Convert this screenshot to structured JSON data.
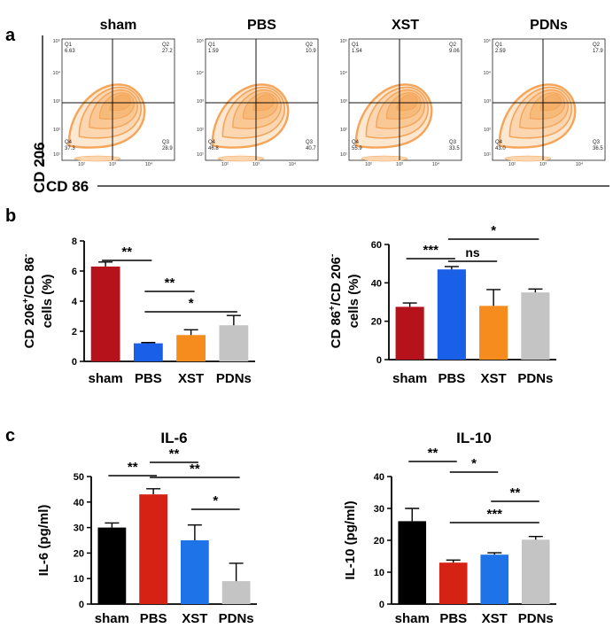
{
  "panel_letters": {
    "a": "a",
    "b": "b",
    "c": "c"
  },
  "flow": {
    "y_axis_label": "CD 206",
    "x_axis_label": "CD 86",
    "tick_labels_y": [
      "10⁵",
      "10⁴",
      "10³",
      "10²",
      "10¹"
    ],
    "tick_labels_x": [
      "10²",
      "10³",
      "10⁴"
    ],
    "contour_color": "#F5A55A",
    "plots": [
      {
        "title": "sham",
        "quadrants": {
          "Q1": "6.63",
          "Q2": "27.2",
          "Q3": "28.9",
          "Q4": "37.3"
        }
      },
      {
        "title": "PBS",
        "quadrants": {
          "Q1": "1.59",
          "Q2": "10.9",
          "Q3": "40.7",
          "Q4": "46.8"
        }
      },
      {
        "title": "XST",
        "quadrants": {
          "Q1": "1.54",
          "Q2": "9.06",
          "Q3": "33.5",
          "Q4": "55.9"
        }
      },
      {
        "title": "PDNs",
        "quadrants": {
          "Q1": "2.59",
          "Q2": "17.9",
          "Q3": "36.5",
          "Q4": "43.0"
        }
      }
    ]
  },
  "chart_data": [
    {
      "id": "b_left",
      "type": "bar",
      "title": "",
      "ylabel": [
        "CD 206",
        "+",
        "/CD 86",
        "-",
        "cells (%)"
      ],
      "xlabel": "",
      "categories": [
        "sham",
        "PBS",
        "XST",
        "PDNs"
      ],
      "values": [
        6.3,
        1.2,
        1.75,
        2.4
      ],
      "errors": [
        0.3,
        0.05,
        0.35,
        0.65
      ],
      "colors": [
        "#B5121B",
        "#1A5FE8",
        "#F68B1E",
        "#C4C4C4"
      ],
      "ylim": [
        0,
        8
      ],
      "yticks": [
        0,
        2,
        4,
        6,
        8
      ],
      "significance": [
        {
          "from": 0,
          "to": 1,
          "label": "**"
        },
        {
          "from": 1,
          "to": 2,
          "label": "**"
        },
        {
          "from": 1,
          "to": 3,
          "label": "*"
        }
      ]
    },
    {
      "id": "b_right",
      "type": "bar",
      "title": "",
      "ylabel": [
        "CD 86",
        "+",
        "/CD 206",
        "-",
        "cells (%)"
      ],
      "xlabel": "",
      "categories": [
        "sham",
        "PBS",
        "XST",
        "PDNs"
      ],
      "values": [
        27.5,
        47,
        28,
        35
      ],
      "errors": [
        2.0,
        1.5,
        8.5,
        1.8
      ],
      "colors": [
        "#B5121B",
        "#1A5FE8",
        "#F68B1E",
        "#C4C4C4"
      ],
      "ylim": [
        0,
        60
      ],
      "yticks": [
        0,
        20,
        40,
        60
      ],
      "significance": [
        {
          "from": 0,
          "to": 1,
          "label": "***"
        },
        {
          "from": 1,
          "to": 2,
          "label": "ns"
        },
        {
          "from": 1,
          "to": 3,
          "label": "*"
        }
      ]
    },
    {
      "id": "c_left",
      "type": "bar",
      "title": "IL-6",
      "ylabel": [
        "IL-6 (pg/ml)"
      ],
      "xlabel": "",
      "categories": [
        "sham",
        "PBS",
        "XST",
        "PDNs"
      ],
      "values": [
        30,
        43,
        25,
        9
      ],
      "errors": [
        1.8,
        2.2,
        6.0,
        7.0
      ],
      "colors": [
        "#000000",
        "#D52215",
        "#1E73E8",
        "#C4C4C4"
      ],
      "ylim": [
        0,
        50
      ],
      "yticks": [
        0,
        10,
        20,
        30,
        40,
        50
      ],
      "significance": [
        {
          "from": 0,
          "to": 1,
          "label": "**"
        },
        {
          "from": 1,
          "to": 2,
          "label": "**"
        },
        {
          "from": 1,
          "to": 3,
          "label": "**"
        },
        {
          "from": 2,
          "to": 3,
          "label": "*"
        }
      ]
    },
    {
      "id": "c_right",
      "type": "bar",
      "title": "IL-10",
      "ylabel": [
        "IL-10 (pg/ml)"
      ],
      "xlabel": "",
      "categories": [
        "sham",
        "PBS",
        "XST",
        "PDNs"
      ],
      "values": [
        26,
        13,
        15.5,
        20.2
      ],
      "errors": [
        4.0,
        0.8,
        0.6,
        1.0
      ],
      "colors": [
        "#000000",
        "#D52215",
        "#1E73E8",
        "#C4C4C4"
      ],
      "ylim": [
        0,
        40
      ],
      "yticks": [
        0,
        10,
        20,
        30,
        40
      ],
      "significance": [
        {
          "from": 0,
          "to": 1,
          "label": "**"
        },
        {
          "from": 1,
          "to": 3,
          "label": "***"
        },
        {
          "from": 1,
          "to": 2,
          "label": "*"
        },
        {
          "from": 2,
          "to": 3,
          "label": "**"
        }
      ]
    }
  ]
}
